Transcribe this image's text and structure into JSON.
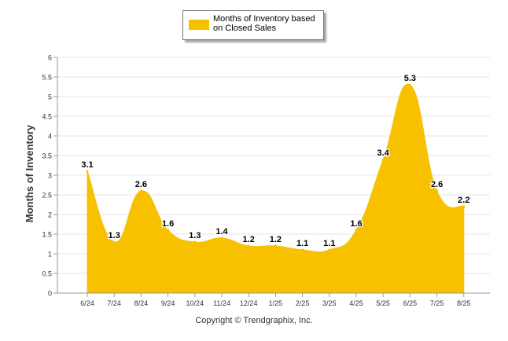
{
  "chart_data": {
    "type": "area",
    "categories": [
      "6/24",
      "7/24",
      "8/24",
      "9/24",
      "10/24",
      "11/24",
      "12/24",
      "1/25",
      "2/25",
      "3/25",
      "4/25",
      "5/25",
      "6/25",
      "7/25",
      "8/25"
    ],
    "series": [
      {
        "name": "Months of Inventory based on Closed Sales",
        "values": [
          3.1,
          1.3,
          2.6,
          1.6,
          1.3,
          1.4,
          1.2,
          1.2,
          1.1,
          1.1,
          1.6,
          3.4,
          5.3,
          2.6,
          2.2
        ]
      }
    ],
    "data_labels": [
      "3.1",
      "1.3",
      "2.6",
      "1.6",
      "1.3",
      "1.4",
      "1.2",
      "1.2",
      "1.1",
      "1.1",
      "1.6",
      "3.4",
      "5.3",
      "2.6",
      "2.2"
    ],
    "ylabel": "Months of Inventory",
    "xlabel": "",
    "ylim": [
      0,
      6
    ],
    "yticks": [
      "0",
      "0.5",
      "1",
      "1.5",
      "2",
      "2.5",
      "3",
      "3.5",
      "4",
      "4.5",
      "5",
      "5.5",
      "6"
    ],
    "grid": true,
    "legend_position": "top-center",
    "color": "#f7c100"
  },
  "legend": {
    "label": "Months of Inventory based on Closed Sales"
  },
  "footer": {
    "copyright": "Copyright © Trendgraphix, Inc."
  }
}
